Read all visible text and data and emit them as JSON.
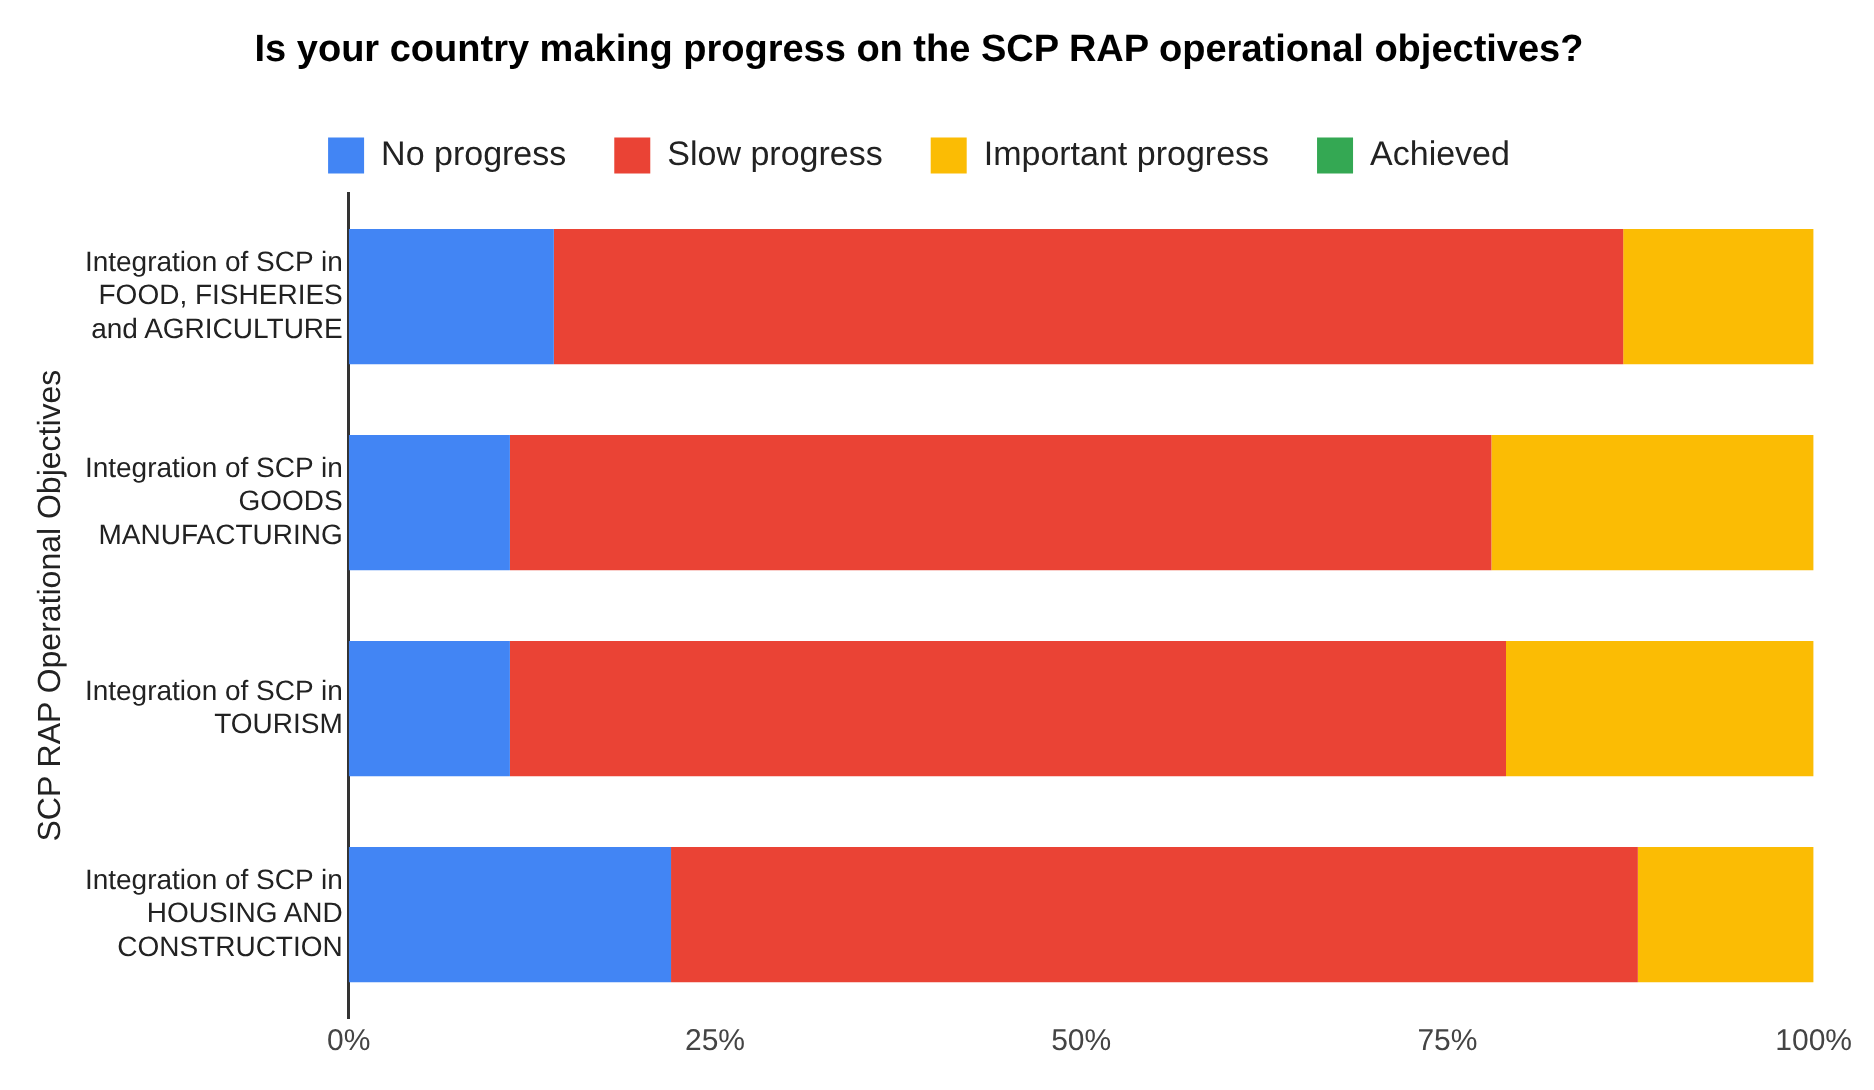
{
  "chart_data": {
    "type": "bar",
    "orientation": "horizontal",
    "stacked": true,
    "title": "Is your country making progress on the SCP RAP operational objectives?",
    "ylabel": "SCP RAP Operational Objectives",
    "categories": [
      "Integration of SCP in\nFOOD, FISHERIES\nand AGRICULTURE",
      "Integration of SCP in\nGOODS\nMANUFACTURING",
      "Integration of SCP in\nTOURISM",
      "Integration of SCP in\nHOUSING AND\nCONSTRUCTION"
    ],
    "series": [
      {
        "name": "No progress",
        "color": "#4285f4",
        "values": [
          14,
          11,
          11,
          22
        ]
      },
      {
        "name": "Slow progress",
        "color": "#ea4335",
        "values": [
          73,
          67,
          68,
          66
        ]
      },
      {
        "name": "Important progress",
        "color": "#fbbc04",
        "values": [
          13,
          22,
          21,
          12
        ]
      },
      {
        "name": "Achieved",
        "color": "#34a853",
        "values": [
          0,
          0,
          0,
          0
        ]
      }
    ],
    "xlim": [
      0,
      100
    ],
    "xticks": [
      {
        "value": 0,
        "label": "0%"
      },
      {
        "value": 25,
        "label": "25%"
      },
      {
        "value": 50,
        "label": "50%"
      },
      {
        "value": 75,
        "label": "75%"
      },
      {
        "value": 100,
        "label": "100%"
      }
    ],
    "grid": false,
    "legend": "top"
  }
}
